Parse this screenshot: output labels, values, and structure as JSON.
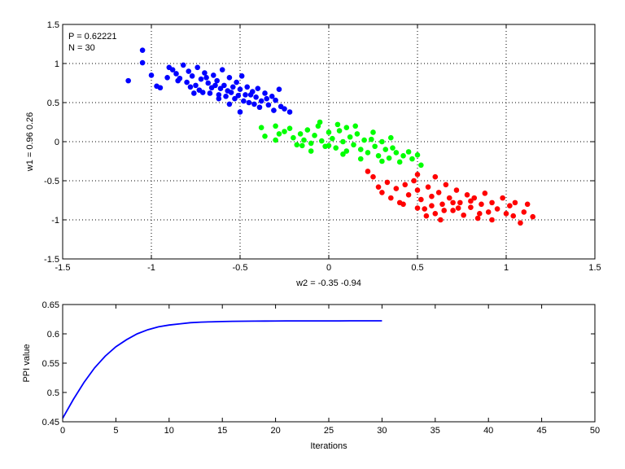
{
  "chart_data": [
    {
      "type": "scatter",
      "xlabel": "w2 = -0.35  -0.94",
      "ylabel": "w1 = 0.96  0.26",
      "xlim": [
        -1.5,
        1.5
      ],
      "ylim": [
        -1.5,
        1.5
      ],
      "xticks": [
        "-1.5",
        "-1",
        "-0.5",
        "0",
        "0.5",
        "1",
        "1.5"
      ],
      "yticks": [
        "-1.5",
        "-1",
        "-0.5",
        "0",
        "0.5",
        "1",
        "1.5"
      ],
      "grid": true,
      "annotations": [
        "P = 0.62221",
        "N = 30"
      ],
      "series": [
        {
          "color": "#0000ff",
          "points": [
            [
              -1.13,
              0.78
            ],
            [
              -1.05,
              1.17
            ],
            [
              -1.05,
              1.01
            ],
            [
              -1.0,
              0.85
            ],
            [
              -0.97,
              0.71
            ],
            [
              -0.95,
              0.69
            ],
            [
              -0.9,
              0.95
            ],
            [
              -0.88,
              0.92
            ],
            [
              -0.86,
              0.87
            ],
            [
              -0.84,
              0.81
            ],
            [
              -0.82,
              0.98
            ],
            [
              -0.8,
              0.76
            ],
            [
              -0.79,
              0.9
            ],
            [
              -0.77,
              0.84
            ],
            [
              -0.75,
              0.72
            ],
            [
              -0.74,
              0.95
            ],
            [
              -0.72,
              0.8
            ],
            [
              -0.71,
              0.63
            ],
            [
              -0.7,
              0.88
            ],
            [
              -0.68,
              0.75
            ],
            [
              -0.66,
              0.69
            ],
            [
              -0.65,
              0.85
            ],
            [
              -0.63,
              0.78
            ],
            [
              -0.62,
              0.6
            ],
            [
              -0.6,
              0.92
            ],
            [
              -0.59,
              0.72
            ],
            [
              -0.57,
              0.65
            ],
            [
              -0.56,
              0.82
            ],
            [
              -0.54,
              0.7
            ],
            [
              -0.53,
              0.55
            ],
            [
              -0.52,
              0.76
            ],
            [
              -0.5,
              0.67
            ],
            [
              -0.49,
              0.84
            ],
            [
              -0.47,
              0.6
            ],
            [
              -0.46,
              0.7
            ],
            [
              -0.45,
              0.5
            ],
            [
              -0.43,
              0.64
            ],
            [
              -0.41,
              0.57
            ],
            [
              -0.4,
              0.68
            ],
            [
              -0.38,
              0.52
            ],
            [
              -0.36,
              0.62
            ],
            [
              -0.34,
              0.47
            ],
            [
              -0.32,
              0.58
            ],
            [
              -0.3,
              0.53
            ],
            [
              -0.28,
              0.67
            ],
            [
              -0.27,
              0.45
            ],
            [
              -0.25,
              0.42
            ],
            [
              -0.78,
              0.7
            ],
            [
              -0.69,
              0.82
            ],
            [
              -0.61,
              0.68
            ],
            [
              -0.58,
              0.58
            ],
            [
              -0.55,
              0.63
            ],
            [
              -0.51,
              0.59
            ],
            [
              -0.48,
              0.52
            ],
            [
              -0.44,
              0.6
            ],
            [
              -0.42,
              0.48
            ],
            [
              -0.73,
              0.66
            ],
            [
              -0.67,
              0.62
            ],
            [
              -0.64,
              0.72
            ],
            [
              -0.85,
              0.78
            ],
            [
              -0.91,
              0.82
            ],
            [
              -0.76,
              0.62
            ],
            [
              -0.5,
              0.38
            ],
            [
              -0.39,
              0.44
            ],
            [
              -0.35,
              0.55
            ],
            [
              -0.31,
              0.4
            ],
            [
              -0.22,
              0.38
            ],
            [
              -0.56,
              0.48
            ],
            [
              -0.62,
              0.55
            ]
          ]
        },
        {
          "color": "#00ff00",
          "points": [
            [
              -0.38,
              0.18
            ],
            [
              -0.36,
              0.07
            ],
            [
              -0.3,
              0.02
            ],
            [
              -0.25,
              0.13
            ],
            [
              -0.22,
              0.17
            ],
            [
              -0.2,
              0.05
            ],
            [
              -0.18,
              -0.04
            ],
            [
              -0.16,
              0.1
            ],
            [
              -0.14,
              0.02
            ],
            [
              -0.12,
              0.15
            ],
            [
              -0.1,
              -0.02
            ],
            [
              -0.08,
              0.08
            ],
            [
              -0.06,
              0.2
            ],
            [
              -0.04,
              0.01
            ],
            [
              -0.02,
              -0.06
            ],
            [
              0.0,
              0.12
            ],
            [
              0.02,
              0.04
            ],
            [
              0.04,
              -0.08
            ],
            [
              0.06,
              0.14
            ],
            [
              0.08,
              0.0
            ],
            [
              0.1,
              -0.12
            ],
            [
              0.12,
              0.06
            ],
            [
              0.14,
              -0.04
            ],
            [
              0.16,
              0.1
            ],
            [
              0.18,
              -0.1
            ],
            [
              0.2,
              0.02
            ],
            [
              0.22,
              -0.14
            ],
            [
              0.24,
              0.03
            ],
            [
              0.26,
              -0.06
            ],
            [
              0.28,
              -0.18
            ],
            [
              0.3,
              0.0
            ],
            [
              0.32,
              -0.1
            ],
            [
              0.34,
              -0.21
            ],
            [
              0.36,
              -0.08
            ],
            [
              0.38,
              -0.14
            ],
            [
              0.4,
              -0.26
            ],
            [
              0.42,
              -0.18
            ],
            [
              0.45,
              -0.13
            ],
            [
              0.47,
              -0.22
            ],
            [
              0.5,
              -0.17
            ],
            [
              0.52,
              -0.3
            ],
            [
              -0.28,
              0.1
            ],
            [
              -0.05,
              0.25
            ],
            [
              0.05,
              0.22
            ],
            [
              0.1,
              0.18
            ],
            [
              0.15,
              0.2
            ],
            [
              -0.15,
              -0.05
            ],
            [
              -0.1,
              -0.12
            ],
            [
              0.0,
              -0.05
            ],
            [
              0.25,
              0.12
            ],
            [
              0.35,
              0.05
            ],
            [
              0.3,
              -0.25
            ],
            [
              0.18,
              -0.22
            ],
            [
              0.08,
              -0.16
            ],
            [
              -0.3,
              0.2
            ]
          ]
        },
        {
          "color": "#ff0000",
          "points": [
            [
              0.22,
              -0.38
            ],
            [
              0.25,
              -0.45
            ],
            [
              0.28,
              -0.58
            ],
            [
              0.3,
              -0.65
            ],
            [
              0.33,
              -0.52
            ],
            [
              0.35,
              -0.72
            ],
            [
              0.38,
              -0.6
            ],
            [
              0.4,
              -0.78
            ],
            [
              0.43,
              -0.55
            ],
            [
              0.45,
              -0.68
            ],
            [
              0.48,
              -0.5
            ],
            [
              0.5,
              -0.62
            ],
            [
              0.52,
              -0.74
            ],
            [
              0.54,
              -0.86
            ],
            [
              0.56,
              -0.58
            ],
            [
              0.58,
              -0.7
            ],
            [
              0.6,
              -0.92
            ],
            [
              0.62,
              -0.65
            ],
            [
              0.64,
              -0.8
            ],
            [
              0.66,
              -0.55
            ],
            [
              0.68,
              -0.72
            ],
            [
              0.7,
              -0.88
            ],
            [
              0.72,
              -0.62
            ],
            [
              0.74,
              -0.78
            ],
            [
              0.76,
              -0.94
            ],
            [
              0.78,
              -0.68
            ],
            [
              0.8,
              -0.84
            ],
            [
              0.82,
              -0.72
            ],
            [
              0.84,
              -0.98
            ],
            [
              0.86,
              -0.8
            ],
            [
              0.88,
              -0.66
            ],
            [
              0.9,
              -0.9
            ],
            [
              0.92,
              -0.78
            ],
            [
              0.95,
              -0.86
            ],
            [
              0.98,
              -0.72
            ],
            [
              1.0,
              -0.92
            ],
            [
              1.02,
              -0.82
            ],
            [
              1.05,
              -0.78
            ],
            [
              1.08,
              -1.04
            ],
            [
              1.1,
              -0.9
            ],
            [
              1.12,
              -0.8
            ],
            [
              1.15,
              -0.96
            ],
            [
              0.42,
              -0.8
            ],
            [
              0.55,
              -0.95
            ],
            [
              0.63,
              -1.0
            ],
            [
              0.5,
              -0.85
            ],
            [
              0.58,
              -0.82
            ],
            [
              0.65,
              -0.88
            ],
            [
              0.73,
              -0.85
            ],
            [
              0.85,
              -0.92
            ],
            [
              0.92,
              -1.0
            ],
            [
              1.04,
              -0.95
            ],
            [
              0.6,
              -0.45
            ],
            [
              0.5,
              -0.42
            ],
            [
              0.7,
              -0.78
            ],
            [
              0.8,
              -0.76
            ]
          ]
        }
      ]
    },
    {
      "type": "line",
      "xlabel": "Iterations",
      "ylabel": "PPI value",
      "xlim": [
        0,
        50
      ],
      "ylim": [
        0.45,
        0.65
      ],
      "xticks": [
        "0",
        "5",
        "10",
        "15",
        "20",
        "25",
        "30",
        "35",
        "40",
        "45",
        "50"
      ],
      "yticks": [
        "0.45",
        "0.5",
        "0.55",
        "0.6",
        "0.65"
      ],
      "grid": false,
      "series": [
        {
          "color": "#0000ff",
          "x": [
            0,
            1,
            2,
            3,
            4,
            5,
            6,
            7,
            8,
            9,
            10,
            11,
            12,
            13,
            14,
            15,
            16,
            17,
            18,
            19,
            20,
            21,
            22,
            23,
            24,
            25,
            26,
            27,
            28,
            29,
            30
          ],
          "y": [
            0.456,
            0.488,
            0.517,
            0.542,
            0.562,
            0.578,
            0.59,
            0.6,
            0.607,
            0.612,
            0.615,
            0.617,
            0.619,
            0.62,
            0.6205,
            0.621,
            0.6213,
            0.6215,
            0.6217,
            0.6218,
            0.6219,
            0.622,
            0.622,
            0.6221,
            0.6221,
            0.6221,
            0.6221,
            0.6222,
            0.6222,
            0.6222,
            0.6222
          ]
        }
      ]
    }
  ]
}
